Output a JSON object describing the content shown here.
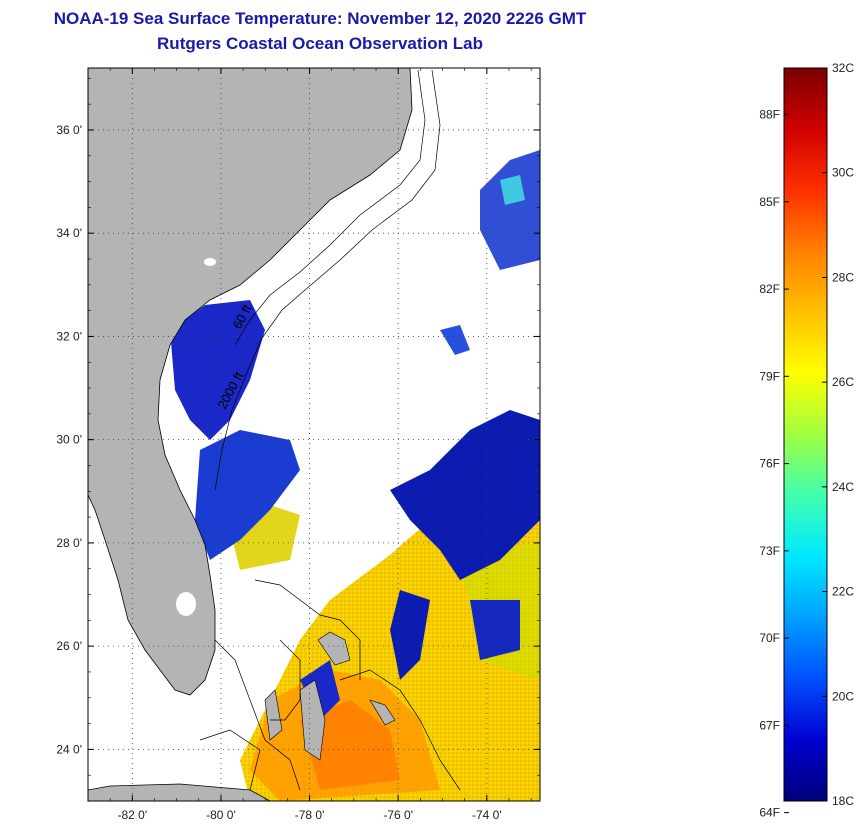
{
  "title": "NOAA-19 Sea Surface Temperature:  November 12, 2020 2226 GMT",
  "subtitle": "Rutgers Coastal Ocean Observation Lab",
  "map": {
    "lon_range": [
      -83.0,
      -72.8
    ],
    "lat_range": [
      23.0,
      37.2
    ],
    "lon_ticks": [
      "-82 0'",
      "-80 0'",
      "-78 0'",
      "-76 0'",
      "-74 0'"
    ],
    "lon_tick_values": [
      -82,
      -80,
      -78,
      -76,
      -74
    ],
    "lat_ticks": [
      "24 0'",
      "26 0'",
      "28 0'",
      "30 0'",
      "32 0'",
      "34 0'",
      "36 0'"
    ],
    "lat_tick_values": [
      24,
      26,
      28,
      30,
      32,
      34,
      36
    ],
    "contour_labels": [
      "60 ft",
      "2000 ft"
    ],
    "land_color": "#b4b4b4",
    "cloud_color": "#ffffff"
  },
  "colorbar": {
    "range_celsius": [
      18,
      32
    ],
    "celsius_labels": [
      "32C",
      "30C",
      "28C",
      "26C",
      "24C",
      "22C",
      "20C",
      "18C"
    ],
    "celsius_values": [
      32,
      30,
      28,
      26,
      24,
      22,
      20,
      18
    ],
    "fahrenheit_labels": [
      "88F",
      "85F",
      "82F",
      "79F",
      "76F",
      "73F",
      "70F",
      "67F",
      "64F"
    ],
    "fahrenheit_values": [
      88,
      85,
      82,
      79,
      76,
      73,
      70,
      67,
      64
    ],
    "colors": [
      "#00007a",
      "#0000d0",
      "#0050ff",
      "#00a0ff",
      "#00e8ff",
      "#40ffb0",
      "#a0ff40",
      "#ffff00",
      "#ffc000",
      "#ff8000",
      "#ff3000",
      "#d00000",
      "#7a0000"
    ]
  }
}
